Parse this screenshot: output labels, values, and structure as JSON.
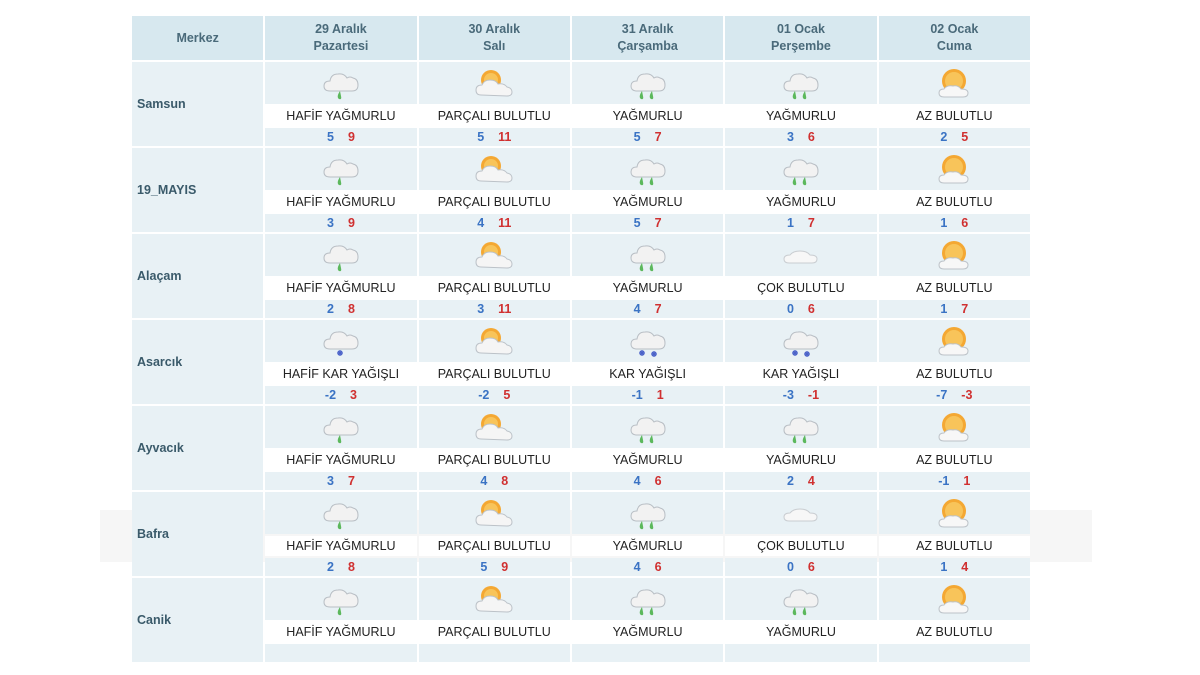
{
  "header": {
    "center_label": "Merkez",
    "days": [
      {
        "date": "29 Aralık",
        "weekday": "Pazartesi"
      },
      {
        "date": "30 Aralık",
        "weekday": "Salı"
      },
      {
        "date": "31 Aralık",
        "weekday": "Çarşamba"
      },
      {
        "date": "01 Ocak",
        "weekday": "Perşembe"
      },
      {
        "date": "02 Ocak",
        "weekday": "Cuma"
      }
    ]
  },
  "rows": [
    {
      "city": "Samsun",
      "days": [
        {
          "icon": "light-rain",
          "cond": "HAFİF YAĞMURLU",
          "min": "5",
          "max": "9"
        },
        {
          "icon": "partly-cloudy",
          "cond": "PARÇALI BULUTLU",
          "min": "5",
          "max": "11"
        },
        {
          "icon": "rain",
          "cond": "YAĞMURLU",
          "min": "5",
          "max": "7"
        },
        {
          "icon": "rain",
          "cond": "YAĞMURLU",
          "min": "3",
          "max": "6"
        },
        {
          "icon": "mostly-sunny",
          "cond": "AZ BULUTLU",
          "min": "2",
          "max": "5"
        }
      ]
    },
    {
      "city": "19_MAYIS",
      "days": [
        {
          "icon": "light-rain",
          "cond": "HAFİF YAĞMURLU",
          "min": "3",
          "max": "9"
        },
        {
          "icon": "partly-cloudy",
          "cond": "PARÇALI BULUTLU",
          "min": "4",
          "max": "11"
        },
        {
          "icon": "rain",
          "cond": "YAĞMURLU",
          "min": "5",
          "max": "7"
        },
        {
          "icon": "rain",
          "cond": "YAĞMURLU",
          "min": "1",
          "max": "7"
        },
        {
          "icon": "mostly-sunny",
          "cond": "AZ BULUTLU",
          "min": "1",
          "max": "6"
        }
      ]
    },
    {
      "city": "Alaçam",
      "days": [
        {
          "icon": "light-rain",
          "cond": "HAFİF YAĞMURLU",
          "min": "2",
          "max": "8"
        },
        {
          "icon": "partly-cloudy",
          "cond": "PARÇALI BULUTLU",
          "min": "3",
          "max": "11"
        },
        {
          "icon": "rain",
          "cond": "YAĞMURLU",
          "min": "4",
          "max": "7"
        },
        {
          "icon": "cloudy",
          "cond": "ÇOK BULUTLU",
          "min": "0",
          "max": "6"
        },
        {
          "icon": "mostly-sunny",
          "cond": "AZ BULUTLU",
          "min": "1",
          "max": "7"
        }
      ]
    },
    {
      "city": "Asarcık",
      "days": [
        {
          "icon": "light-snow",
          "cond": "HAFİF KAR YAĞIŞLI",
          "min": "-2",
          "max": "3"
        },
        {
          "icon": "partly-cloudy",
          "cond": "PARÇALI BULUTLU",
          "min": "-2",
          "max": "5"
        },
        {
          "icon": "snow",
          "cond": "KAR YAĞIŞLI",
          "min": "-1",
          "max": "1"
        },
        {
          "icon": "snow",
          "cond": "KAR YAĞIŞLI",
          "min": "-3",
          "max": "-1"
        },
        {
          "icon": "mostly-sunny",
          "cond": "AZ BULUTLU",
          "min": "-7",
          "max": "-3"
        }
      ]
    },
    {
      "city": "Ayvacık",
      "days": [
        {
          "icon": "light-rain",
          "cond": "HAFİF YAĞMURLU",
          "min": "3",
          "max": "7"
        },
        {
          "icon": "partly-cloudy",
          "cond": "PARÇALI BULUTLU",
          "min": "4",
          "max": "8"
        },
        {
          "icon": "rain",
          "cond": "YAĞMURLU",
          "min": "4",
          "max": "6"
        },
        {
          "icon": "rain",
          "cond": "YAĞMURLU",
          "min": "2",
          "max": "4"
        },
        {
          "icon": "mostly-sunny",
          "cond": "AZ BULUTLU",
          "min": "-1",
          "max": "1"
        }
      ]
    },
    {
      "city": "Bafra",
      "days": [
        {
          "icon": "light-rain",
          "cond": "HAFİF YAĞMURLU",
          "min": "2",
          "max": "8"
        },
        {
          "icon": "partly-cloudy",
          "cond": "PARÇALI BULUTLU",
          "min": "5",
          "max": "9"
        },
        {
          "icon": "rain",
          "cond": "YAĞMURLU",
          "min": "4",
          "max": "6"
        },
        {
          "icon": "cloudy",
          "cond": "ÇOK BULUTLU",
          "min": "0",
          "max": "6"
        },
        {
          "icon": "mostly-sunny",
          "cond": "AZ BULUTLU",
          "min": "1",
          "max": "4"
        }
      ]
    },
    {
      "city": "Canik",
      "days": [
        {
          "icon": "light-rain",
          "cond": "HAFİF YAĞMURLU",
          "min": "",
          "max": ""
        },
        {
          "icon": "partly-cloudy",
          "cond": "PARÇALI BULUTLU",
          "min": "",
          "max": ""
        },
        {
          "icon": "rain",
          "cond": "YAĞMURLU",
          "min": "",
          "max": ""
        },
        {
          "icon": "rain",
          "cond": "YAĞMURLU",
          "min": "",
          "max": ""
        },
        {
          "icon": "mostly-sunny",
          "cond": "AZ BULUTLU",
          "min": "",
          "max": ""
        }
      ]
    }
  ],
  "colors": {
    "header_bg": "#d7e8ef",
    "cell_bg": "#e8f1f5",
    "min_temp": "#3a73c4",
    "max_temp": "#d03030"
  }
}
